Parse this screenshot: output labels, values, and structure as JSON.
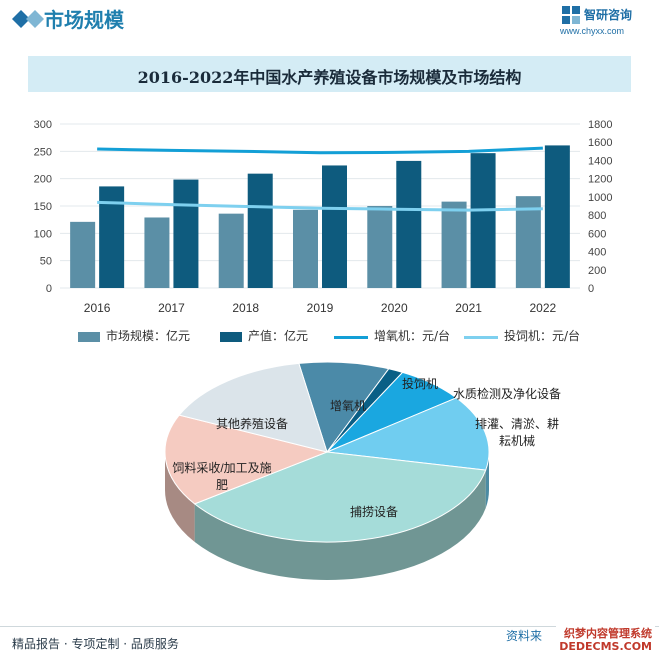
{
  "header": {
    "title": "市场规模",
    "logo_text": "智研咨询",
    "url": "www.chyxx.com"
  },
  "chart_data": [
    {
      "type": "bar",
      "title": "2016-2022年中国水产养殖设备市场规模及市场结构",
      "categories": [
        "2016",
        "2017",
        "2018",
        "2019",
        "2020",
        "2021",
        "2022"
      ],
      "left_axis": {
        "ylim": [
          0,
          300
        ],
        "ticks": [
          0,
          50,
          100,
          150,
          200,
          250,
          300
        ]
      },
      "right_axis": {
        "ylim": [
          0,
          1800
        ],
        "ticks": [
          0,
          200,
          400,
          600,
          800,
          1000,
          1200,
          1400,
          1600,
          1800
        ]
      },
      "series": [
        {
          "name": "市场规模：亿元",
          "kind": "bar",
          "axis": "left",
          "color": "#5b8fa6",
          "values": [
            121,
            129,
            136,
            143,
            150,
            158,
            168
          ]
        },
        {
          "name": "产值：亿元",
          "kind": "bar",
          "axis": "right",
          "color": "#0e5b7e",
          "values": [
            1115,
            1190,
            1255,
            1345,
            1395,
            1480,
            1565
          ]
        },
        {
          "name": "增氧机：元/台",
          "kind": "line",
          "axis": "right",
          "color": "#139fd6",
          "values": [
            1525,
            1510,
            1500,
            1485,
            1488,
            1500,
            1535
          ]
        },
        {
          "name": "投饲机：元/台",
          "kind": "line",
          "axis": "right",
          "color": "#7ed0ef",
          "values": [
            940,
            915,
            895,
            875,
            865,
            855,
            870
          ]
        }
      ],
      "grid": true,
      "legend_position": "bottom"
    },
    {
      "type": "pie",
      "style": "3d",
      "slices": [
        {
          "label": "增氧机",
          "value": 9,
          "color": "#4b8aa8"
        },
        {
          "label": "投饲机",
          "value": 1.5,
          "color": "#0a5f86"
        },
        {
          "label": "水质检测及净化设备",
          "value": 7,
          "color": "#1aa7e0"
        },
        {
          "label": "排灌、清淤、耕耘机械",
          "value": 13.5,
          "color": "#70cdf0"
        },
        {
          "label": "捕捞设备",
          "value": 37,
          "color": "#a5dcd9"
        },
        {
          "label": "饲料采收/加工及施肥",
          "value": 16.5,
          "color": "#f5cbc1"
        },
        {
          "label": "其他养殖设备",
          "value": 15.5,
          "color": "#dbe4ea"
        }
      ]
    }
  ],
  "footer": {
    "left": "精品报告 · 专项定制 · 品质服务",
    "right": "资料来",
    "watermark": "织梦内容管理系统\nDEDECMS.COM"
  }
}
